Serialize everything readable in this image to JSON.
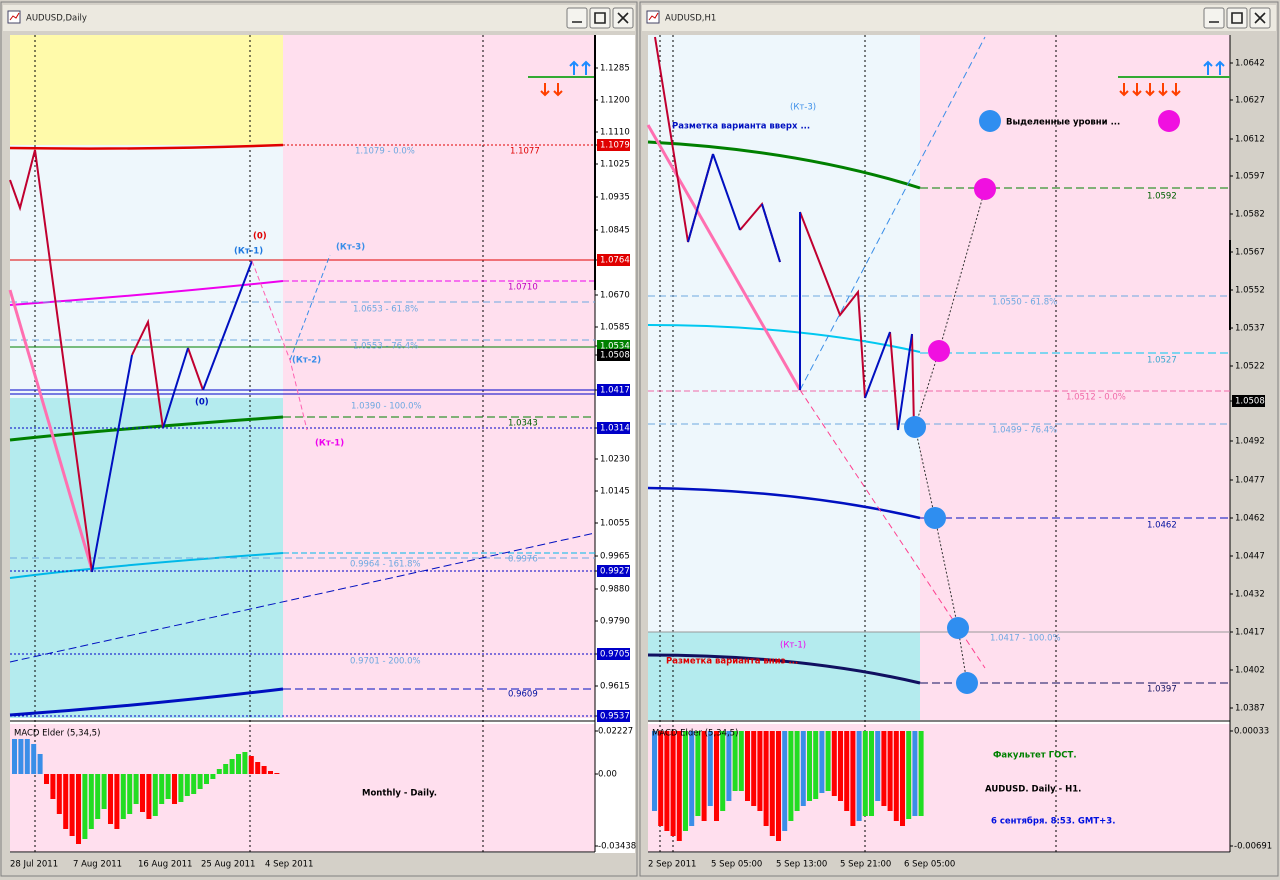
{
  "windows": [
    {
      "title": "AUDUSD,Daily",
      "price_axis": [
        "1.1285",
        "1.1200",
        "1.1110",
        "1.1079",
        "1.1025",
        "1.0935",
        "1.0845",
        "1.0764",
        "1.0670",
        "1.0585",
        "1.0534",
        "1.0508",
        "1.0417",
        "1.0314",
        "1.0230",
        "1.0145",
        "1.0055",
        "0.9965",
        "0.9927",
        "0.9880",
        "0.9790",
        "0.9705",
        "0.9615",
        "0.9537"
      ],
      "levels": [
        "1.1079 - 0.0%",
        "1.1077",
        "1.0710",
        "1.0653 - 61.8%",
        "1.0553 - 76.4%",
        "1.0390 - 100.0%",
        "1.0343",
        "0.9976",
        "0.9964 - 161.8%",
        "0.9701 - 200.0%",
        "0.9609"
      ],
      "annotations": [
        "(0)",
        "(Кт-1)",
        "(Кт-3)",
        "(Кт-2)",
        "(0)",
        "(Кт-1)"
      ],
      "macd": {
        "label": "MACD Elder (5,34,5)",
        "axis": [
          "0.02227",
          "0.00",
          "-0.03438"
        ]
      },
      "dates": [
        "28 Jul 2011",
        "7 Aug 2011",
        "16 Aug 2011",
        "25 Aug 2011",
        "4 Sep 2011"
      ],
      "captions": [
        "Monthly - Daily."
      ]
    },
    {
      "title": "AUDUSD,H1",
      "price_axis": [
        "1.0642",
        "1.0627",
        "1.0612",
        "1.0597",
        "1.0582",
        "1.0567",
        "1.0552",
        "1.0537",
        "1.0522",
        "1.0508",
        "1.0492",
        "1.0477",
        "1.0462",
        "1.0447",
        "1.0432",
        "1.0417",
        "1.0402",
        "1.0387"
      ],
      "levels": [
        "1.0592",
        "1.0550 - 61.8%",
        "1.0527",
        "1.0512 - 0.0%",
        "1.0499 - 76.4%",
        "1.0462",
        "1.0417 - 100.0%",
        "1.0397"
      ],
      "annotations": [
        "(Кт-3)",
        "Разметка варианта вверх ...",
        "Выделенные уровни ...",
        "(Кт-1)",
        "Разметка варианта вниз ..."
      ],
      "macd": {
        "label": "MACD Elder (5,34,5)",
        "axis": [
          "0.00033",
          "-0.00691"
        ]
      },
      "dates": [
        "2 Sep 2011",
        "5 Sep 05:00",
        "5 Sep 13:00",
        "5 Sep 21:00",
        "6 Sep 05:00"
      ],
      "captions": [
        "Факультет ГОСТ.",
        "AUDUSD. Daily - H1.",
        "6 сентября. 8:53. GMT+3."
      ]
    }
  ]
}
